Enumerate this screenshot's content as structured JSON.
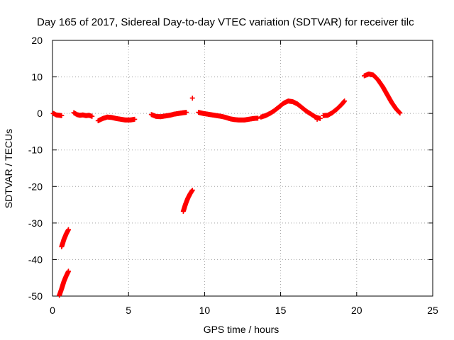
{
  "chart_data": {
    "type": "scatter",
    "title": "Day 165 of 2017, Sidereal Day-to-day VTEC variation (SDTVAR) for receiver tilc",
    "xlabel": "GPS time / hours",
    "ylabel": "SDTVAR / TECUs",
    "xlim": [
      0,
      25
    ],
    "ylim": [
      -50,
      20
    ],
    "xticks": [
      0,
      5,
      10,
      15,
      20,
      25
    ],
    "yticks": [
      -50,
      -40,
      -30,
      -20,
      -10,
      0,
      10,
      20
    ],
    "grid": true,
    "marker": "plus",
    "color": "#ff0000",
    "series": [
      {
        "segments": [
          {
            "x": [
              0.05,
              0.25,
              0.45,
              0.6
            ],
            "y": [
              0.0,
              -0.4,
              -0.5,
              -0.6
            ]
          },
          {
            "x": [
              0.45,
              0.6,
              0.75,
              0.9,
              1.05
            ],
            "y": [
              -49.8,
              -48.0,
              -46.0,
              -44.5,
              -43.2
            ]
          },
          {
            "x": [
              0.6,
              0.75,
              0.9,
              1.05
            ],
            "y": [
              -36.5,
              -34.5,
              -33.0,
              -31.8
            ]
          },
          {
            "x": [
              1.4,
              1.6,
              1.8,
              2.0,
              2.2,
              2.4,
              2.6
            ],
            "y": [
              0.2,
              -0.3,
              -0.5,
              -0.4,
              -0.6,
              -0.5,
              -0.8
            ]
          },
          {
            "x": [
              3.0,
              3.3,
              3.6,
              3.9,
              4.2,
              4.5,
              4.8,
              5.1,
              5.4
            ],
            "y": [
              -2.0,
              -1.4,
              -1.0,
              -1.1,
              -1.4,
              -1.6,
              -1.8,
              -1.8,
              -1.6
            ]
          },
          {
            "x": [
              6.5,
              6.8,
              7.1,
              7.4,
              7.7,
              8.0,
              8.3,
              8.6,
              8.8
            ],
            "y": [
              -0.3,
              -0.8,
              -0.9,
              -0.7,
              -0.5,
              -0.2,
              0.0,
              0.2,
              0.3
            ]
          },
          {
            "x": [
              8.6,
              8.75,
              8.9,
              9.05,
              9.2
            ],
            "y": [
              -26.8,
              -24.8,
              -23.2,
              -22.0,
              -21.0
            ]
          },
          {
            "x": [
              9.2
            ],
            "y": [
              4.2
            ]
          },
          {
            "x": [
              9.6,
              9.9,
              10.2,
              10.5,
              10.8,
              11.1,
              11.4,
              11.7,
              12.0,
              12.3,
              12.6,
              12.9,
              13.2,
              13.5
            ],
            "y": [
              0.3,
              0.0,
              -0.2,
              -0.4,
              -0.6,
              -0.8,
              -1.1,
              -1.5,
              -1.7,
              -1.8,
              -1.8,
              -1.6,
              -1.4,
              -1.3
            ]
          },
          {
            "x": [
              13.7,
              14.0,
              14.3,
              14.6,
              14.9,
              15.2,
              15.5,
              15.8,
              16.1,
              16.4,
              16.7,
              17.0,
              17.3,
              17.6
            ],
            "y": [
              -1.0,
              -0.6,
              0.0,
              0.8,
              1.8,
              2.8,
              3.4,
              3.2,
              2.6,
              1.6,
              0.6,
              -0.2,
              -1.0,
              -1.4
            ]
          },
          {
            "x": [
              17.4
            ],
            "y": [
              -1.6
            ]
          },
          {
            "x": [
              17.8,
              18.1,
              18.4,
              18.7,
              19.0,
              19.2
            ],
            "y": [
              -0.6,
              -0.5,
              0.2,
              1.2,
              2.4,
              3.4
            ]
          },
          {
            "x": [
              20.5,
              20.8,
              21.1,
              21.4,
              21.7,
              22.0,
              22.3,
              22.6,
              22.85
            ],
            "y": [
              10.3,
              10.8,
              10.5,
              9.2,
              7.4,
              5.2,
              3.0,
              1.2,
              0.1
            ]
          }
        ]
      }
    ]
  }
}
